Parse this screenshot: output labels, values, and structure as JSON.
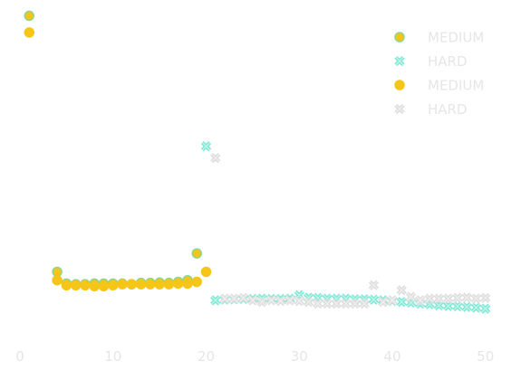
{
  "chart_data": {
    "type": "scatter",
    "title": "",
    "xlabel": "",
    "ylabel": "",
    "xlim": [
      0,
      51
    ],
    "ylim": [
      0,
      1
    ],
    "x_ticks": [
      0,
      10,
      20,
      30,
      40,
      50
    ],
    "grid": false,
    "legend_position": "top-right",
    "series": [
      {
        "name": "MEDIUM",
        "marker": "circle",
        "color": "#f5c518",
        "edge": "#8fd48f",
        "points": [
          [
            1,
            0.98
          ],
          [
            4,
            0.215
          ],
          [
            5,
            0.18
          ],
          [
            6,
            0.178
          ],
          [
            7,
            0.178
          ],
          [
            8,
            0.18
          ],
          [
            9,
            0.18
          ],
          [
            10,
            0.18
          ],
          [
            11,
            0.18
          ],
          [
            12,
            0.178
          ],
          [
            13,
            0.182
          ],
          [
            14,
            0.182
          ],
          [
            15,
            0.183
          ],
          [
            16,
            0.182
          ],
          [
            17,
            0.185
          ],
          [
            18,
            0.19
          ],
          [
            19,
            0.27
          ]
        ]
      },
      {
        "name": "HARD",
        "marker": "x",
        "color": "#7ee8d6",
        "edge": "#7ee8d6",
        "points": [
          [
            20,
            0.59
          ],
          [
            21,
            0.13
          ],
          [
            22,
            0.132
          ],
          [
            23,
            0.133
          ],
          [
            24,
            0.134
          ],
          [
            25,
            0.134
          ],
          [
            26,
            0.135
          ],
          [
            27,
            0.134
          ],
          [
            28,
            0.134
          ],
          [
            29,
            0.135
          ],
          [
            30,
            0.145
          ],
          [
            31,
            0.138
          ],
          [
            32,
            0.137
          ],
          [
            33,
            0.135
          ],
          [
            34,
            0.135
          ],
          [
            35,
            0.135
          ],
          [
            36,
            0.133
          ],
          [
            37,
            0.133
          ],
          [
            38,
            0.132
          ],
          [
            39,
            0.13
          ],
          [
            40,
            0.128
          ],
          [
            41,
            0.125
          ],
          [
            42,
            0.123
          ],
          [
            43,
            0.12
          ],
          [
            44,
            0.118
          ],
          [
            45,
            0.115
          ],
          [
            46,
            0.113
          ],
          [
            47,
            0.112
          ],
          [
            48,
            0.11
          ],
          [
            49,
            0.108
          ],
          [
            50,
            0.105
          ]
        ]
      },
      {
        "name": "MEDIUM",
        "marker": "circle",
        "color": "#f5c518",
        "edge": "#f5c518",
        "points": [
          [
            1,
            0.93
          ],
          [
            4,
            0.19
          ],
          [
            5,
            0.175
          ],
          [
            6,
            0.175
          ],
          [
            7,
            0.175
          ],
          [
            8,
            0.172
          ],
          [
            9,
            0.172
          ],
          [
            10,
            0.175
          ],
          [
            11,
            0.178
          ],
          [
            12,
            0.178
          ],
          [
            13,
            0.178
          ],
          [
            14,
            0.178
          ],
          [
            15,
            0.178
          ],
          [
            16,
            0.178
          ],
          [
            17,
            0.18
          ],
          [
            18,
            0.18
          ],
          [
            19,
            0.185
          ],
          [
            20,
            0.215
          ]
        ]
      },
      {
        "name": "HARD",
        "marker": "x",
        "color": "#dddddd",
        "edge": "#dddddd",
        "points": [
          [
            21,
            0.555
          ],
          [
            22,
            0.135
          ],
          [
            23,
            0.135
          ],
          [
            24,
            0.137
          ],
          [
            25,
            0.13
          ],
          [
            26,
            0.125
          ],
          [
            27,
            0.13
          ],
          [
            28,
            0.128
          ],
          [
            29,
            0.13
          ],
          [
            30,
            0.128
          ],
          [
            31,
            0.125
          ],
          [
            32,
            0.12
          ],
          [
            33,
            0.12
          ],
          [
            34,
            0.12
          ],
          [
            35,
            0.12
          ],
          [
            36,
            0.12
          ],
          [
            37,
            0.12
          ],
          [
            38,
            0.175
          ],
          [
            39,
            0.125
          ],
          [
            40,
            0.13
          ],
          [
            41,
            0.16
          ],
          [
            42,
            0.14
          ],
          [
            43,
            0.13
          ],
          [
            44,
            0.135
          ],
          [
            45,
            0.135
          ],
          [
            46,
            0.135
          ],
          [
            47,
            0.137
          ],
          [
            48,
            0.138
          ],
          [
            49,
            0.135
          ],
          [
            50,
            0.137
          ]
        ]
      }
    ]
  }
}
